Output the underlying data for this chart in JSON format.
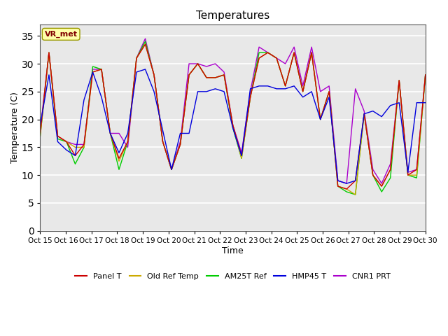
{
  "title": "Temperatures",
  "xlabel": "Time",
  "ylabel": "Temperature (C)",
  "ylim": [
    0,
    37
  ],
  "yticks": [
    0,
    5,
    10,
    15,
    20,
    25,
    30,
    35
  ],
  "annotation_text": "VR_met",
  "series_colors": {
    "Panel T": "#cc0000",
    "Old Ref Temp": "#ccaa00",
    "AM25T Ref": "#00cc00",
    "HMP45 T": "#0000dd",
    "CNR1 PRT": "#aa00cc"
  },
  "x_tick_labels": [
    "Oct 15",
    "Oct 16",
    "Oct 17",
    "Oct 18",
    "Oct 19",
    "Oct 20",
    "Oct 21",
    "Oct 22",
    "Oct 23",
    "Oct 24",
    "Oct 25",
    "Oct 26",
    "Oct 27",
    "Oct 28",
    "Oct 29",
    "Oct 30"
  ],
  "background_color": "#ffffff",
  "plot_bg": "#e8e8e8",
  "grid_color": "#ffffff",
  "panel_data": [
    17.5,
    32.0,
    17.0,
    16.0,
    13.5,
    15.5,
    28.5,
    29.0,
    17.5,
    13.0,
    16.0,
    31.0,
    33.5,
    28.0,
    16.0,
    11.0,
    15.5,
    28.0,
    30.0,
    27.5,
    27.5,
    28.0,
    19.0,
    13.5,
    24.0,
    31.0,
    32.0,
    31.0,
    26.0,
    32.0,
    25.0,
    32.0,
    20.0,
    25.0,
    8.0,
    7.5,
    9.0,
    21.0,
    10.0,
    8.0,
    11.0,
    27.0,
    10.0,
    11.0,
    28.0
  ],
  "old_ref_data": [
    17.0,
    32.0,
    17.0,
    16.0,
    15.0,
    15.0,
    28.5,
    29.0,
    17.5,
    12.5,
    16.0,
    31.0,
    33.5,
    28.0,
    16.0,
    11.0,
    15.5,
    28.0,
    30.0,
    27.5,
    27.5,
    28.0,
    19.0,
    13.0,
    24.0,
    31.0,
    32.0,
    31.0,
    26.0,
    32.0,
    25.0,
    32.0,
    20.0,
    25.0,
    8.0,
    7.5,
    6.5,
    21.0,
    10.0,
    8.0,
    11.0,
    27.0,
    10.0,
    10.0,
    28.0
  ],
  "am25t_data": [
    17.0,
    32.0,
    16.5,
    16.0,
    12.0,
    15.0,
    29.5,
    29.0,
    17.5,
    11.0,
    16.0,
    31.0,
    34.0,
    28.0,
    16.0,
    11.0,
    15.5,
    28.0,
    30.0,
    27.5,
    27.5,
    28.0,
    18.5,
    13.0,
    24.0,
    32.0,
    32.0,
    31.0,
    26.0,
    32.0,
    25.0,
    32.0,
    20.0,
    25.0,
    8.0,
    7.0,
    6.5,
    21.0,
    10.0,
    7.0,
    9.5,
    27.0,
    10.0,
    9.5,
    28.0
  ],
  "hmp45_data": [
    19.0,
    28.0,
    16.0,
    14.5,
    13.5,
    23.5,
    28.5,
    24.0,
    17.5,
    14.0,
    17.5,
    28.5,
    29.0,
    25.0,
    18.0,
    11.0,
    17.5,
    17.5,
    25.0,
    25.0,
    25.5,
    25.0,
    18.5,
    13.5,
    25.5,
    26.0,
    26.0,
    25.5,
    25.5,
    26.0,
    24.0,
    25.0,
    20.0,
    24.0,
    9.0,
    8.5,
    9.0,
    21.0,
    21.5,
    20.5,
    22.5,
    23.0,
    10.5,
    23.0,
    23.0
  ],
  "cnr1_data": [
    18.0,
    32.0,
    17.0,
    16.0,
    15.5,
    15.5,
    29.0,
    29.0,
    17.5,
    17.5,
    15.0,
    31.0,
    34.5,
    28.0,
    16.0,
    11.0,
    16.0,
    30.0,
    30.0,
    29.5,
    30.0,
    28.5,
    19.0,
    14.0,
    25.0,
    33.0,
    32.0,
    31.0,
    30.0,
    33.0,
    26.0,
    33.0,
    25.0,
    26.0,
    9.0,
    8.5,
    25.5,
    21.5,
    11.0,
    8.5,
    12.0,
    27.0,
    10.5,
    11.0,
    28.0
  ]
}
